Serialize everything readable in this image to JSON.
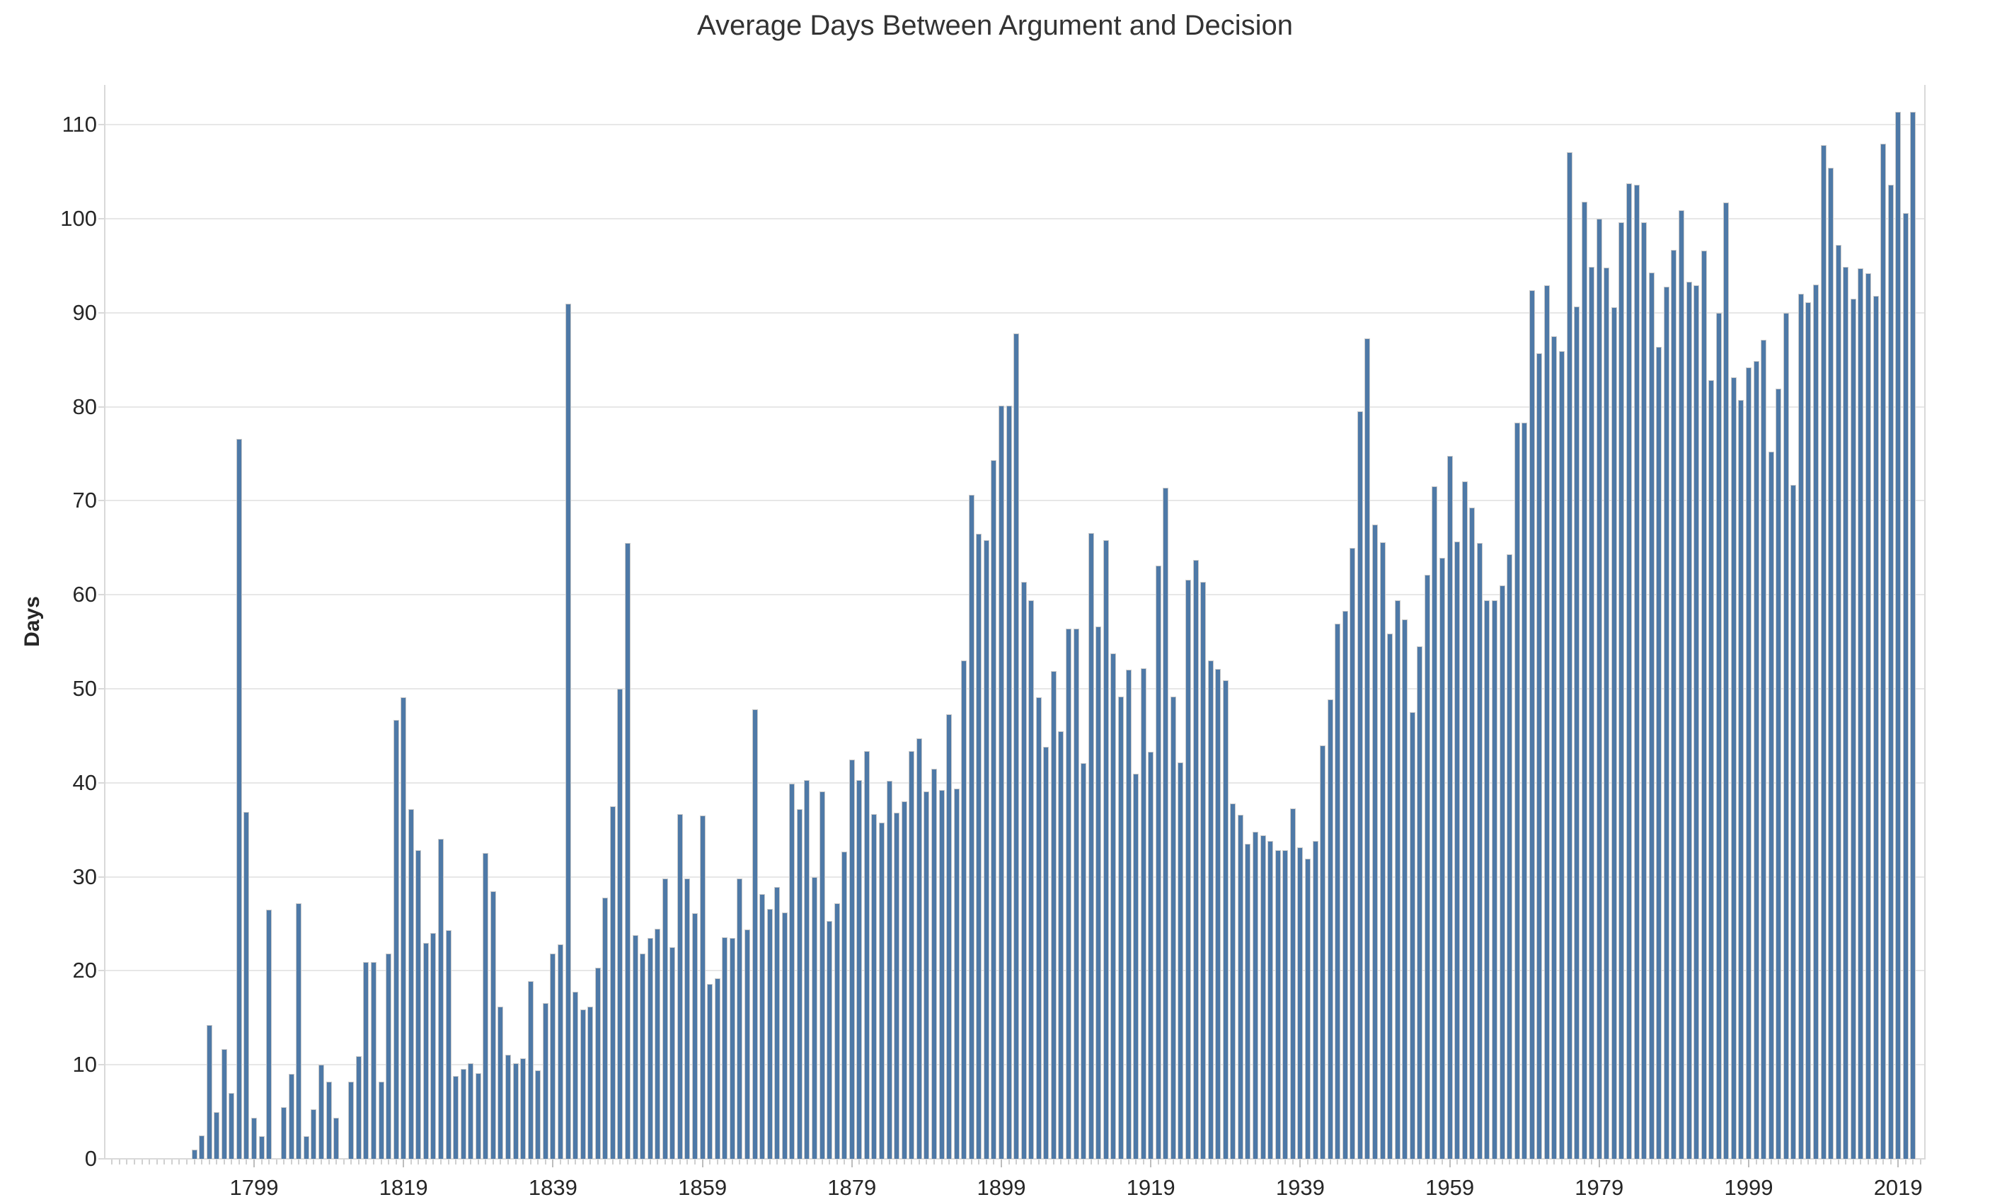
{
  "chart_data": {
    "type": "bar",
    "title": "Average Days Between Argument and Decision",
    "xlabel": "",
    "ylabel": "Days",
    "ylim": [
      0,
      114.2
    ],
    "y_ticks": [
      0,
      10,
      20,
      30,
      40,
      50,
      60,
      70,
      80,
      90,
      100,
      110
    ],
    "x_tick_labels": [
      "1799",
      "1819",
      "1839",
      "1859",
      "1879",
      "1899",
      "1919",
      "1939",
      "1959",
      "1979",
      "1999",
      "2019"
    ],
    "x_axis_range": [
      1780,
      2022
    ],
    "grid": "horizontal only, light gray",
    "legend": "none",
    "missing_years": [
      1802,
      1811
    ],
    "colors": {
      "bar": "#4E79A7",
      "bar_border": "#c9c9c9",
      "grid": "#e7e7e7",
      "axis": "#d9d9d9",
      "tick": "#d0d0d0",
      "label": "#262626",
      "title": "#333333",
      "background": "#ffffff"
    },
    "years": [
      1791,
      1792,
      1793,
      1794,
      1795,
      1796,
      1797,
      1798,
      1799,
      1800,
      1801,
      1802,
      1803,
      1804,
      1805,
      1806,
      1807,
      1808,
      1809,
      1810,
      1811,
      1812,
      1813,
      1814,
      1815,
      1816,
      1817,
      1818,
      1819,
      1820,
      1821,
      1822,
      1823,
      1824,
      1825,
      1826,
      1827,
      1828,
      1829,
      1830,
      1831,
      1832,
      1833,
      1834,
      1835,
      1836,
      1837,
      1838,
      1839,
      1840,
      1841,
      1842,
      1843,
      1844,
      1845,
      1846,
      1847,
      1848,
      1849,
      1850,
      1851,
      1852,
      1853,
      1854,
      1855,
      1856,
      1857,
      1858,
      1859,
      1860,
      1861,
      1862,
      1863,
      1864,
      1865,
      1866,
      1867,
      1868,
      1869,
      1870,
      1871,
      1872,
      1873,
      1874,
      1875,
      1876,
      1877,
      1878,
      1879,
      1880,
      1881,
      1882,
      1883,
      1884,
      1885,
      1886,
      1887,
      1888,
      1889,
      1890,
      1891,
      1892,
      1893,
      1894,
      1895,
      1896,
      1897,
      1898,
      1899,
      1900,
      1901,
      1902,
      1903,
      1904,
      1905,
      1906,
      1907,
      1908,
      1909,
      1910,
      1911,
      1912,
      1913,
      1914,
      1915,
      1916,
      1917,
      1918,
      1919,
      1920,
      1921,
      1922,
      1923,
      1924,
      1925,
      1926,
      1927,
      1928,
      1929,
      1930,
      1931,
      1932,
      1933,
      1934,
      1935,
      1936,
      1937,
      1938,
      1939,
      1940,
      1941,
      1942,
      1943,
      1944,
      1945,
      1946,
      1947,
      1948,
      1949,
      1950,
      1951,
      1952,
      1953,
      1954,
      1955,
      1956,
      1957,
      1958,
      1959,
      1960,
      1961,
      1962,
      1963,
      1964,
      1965,
      1966,
      1967,
      1968,
      1969,
      1970,
      1971,
      1972,
      1973,
      1974,
      1975,
      1976,
      1977,
      1978,
      1979,
      1980,
      1981,
      1982,
      1983,
      1984,
      1985,
      1986,
      1987,
      1988,
      1989,
      1990,
      1991,
      1992,
      1993,
      1994,
      1995,
      1996,
      1997,
      1998,
      1999,
      2000,
      2001,
      2002,
      2003,
      2004,
      2005,
      2006,
      2007,
      2008,
      2009,
      2010,
      2011,
      2012,
      2013,
      2014,
      2015,
      2016,
      2017,
      2018,
      2019,
      2020,
      2021
    ],
    "values": [
      1.0,
      2.5,
      14.2,
      5.0,
      11.7,
      7.0,
      76.6,
      36.9,
      4.4,
      2.4,
      26.5,
      null,
      5.5,
      9.0,
      27.2,
      2.4,
      5.3,
      10.0,
      8.2,
      4.4,
      null,
      8.2,
      10.9,
      20.9,
      20.9,
      8.2,
      21.8,
      46.7,
      49.1,
      37.2,
      32.8,
      23.0,
      24.0,
      34.0,
      24.3,
      8.8,
      9.6,
      10.2,
      9.1,
      32.5,
      28.5,
      16.2,
      11.1,
      10.2,
      10.7,
      18.9,
      9.4,
      16.6,
      21.8,
      22.8,
      91.0,
      17.8,
      15.9,
      16.2,
      20.3,
      27.8,
      37.5,
      50.0,
      65.5,
      23.8,
      21.8,
      23.5,
      24.5,
      29.8,
      22.5,
      36.7,
      29.8,
      26.1,
      36.5,
      18.6,
      19.2,
      23.6,
      23.5,
      29.8,
      24.4,
      47.8,
      28.2,
      26.6,
      28.9,
      26.2,
      39.9,
      37.2,
      40.3,
      30.0,
      39.1,
      25.3,
      27.2,
      32.7,
      42.5,
      40.3,
      43.4,
      36.7,
      35.8,
      40.2,
      36.8,
      38.0,
      43.4,
      44.7,
      39.1,
      41.5,
      39.2,
      47.3,
      39.4,
      53.0,
      70.6,
      66.5,
      65.8,
      74.3,
      80.1,
      80.1,
      87.8,
      61.4,
      59.4,
      49.1,
      43.8,
      51.9,
      45.5,
      56.4,
      56.4,
      42.1,
      66.6,
      56.6,
      65.8,
      53.8,
      49.2,
      52.0,
      41.0,
      52.2,
      43.3,
      63.1,
      71.4,
      49.2,
      42.2,
      61.6,
      63.7,
      61.4,
      53.0,
      52.1,
      50.9,
      37.8,
      36.6,
      33.5,
      34.8,
      34.4,
      33.8,
      32.8,
      32.8,
      37.3,
      33.1,
      31.9,
      33.8,
      44.0,
      48.9,
      56.9,
      58.3,
      65.0,
      79.5,
      87.3,
      67.5,
      65.6,
      55.9,
      59.4,
      57.4,
      47.5,
      54.5,
      62.1,
      71.5,
      63.9,
      74.8,
      65.7,
      72.1,
      69.3,
      65.5,
      59.4,
      59.4,
      61.0,
      64.3,
      78.3,
      78.3,
      92.4,
      85.7,
      92.9,
      87.5,
      85.9,
      107.1,
      90.7,
      101.8,
      94.9,
      100.0,
      94.8,
      90.6,
      99.6,
      103.8,
      103.6,
      99.6,
      94.3,
      86.4,
      92.8,
      96.7,
      100.9,
      93.3,
      92.9,
      96.6,
      82.8,
      90.0,
      101.7,
      83.1,
      80.7,
      84.2,
      84.9,
      87.1,
      75.2,
      81.9,
      90.0,
      71.7,
      92.0,
      91.1,
      93.0,
      107.8,
      105.4,
      97.2,
      94.9,
      91.5,
      94.7,
      94.2,
      91.8,
      108.0,
      103.6,
      111.4,
      100.6,
      111.4
    ]
  }
}
